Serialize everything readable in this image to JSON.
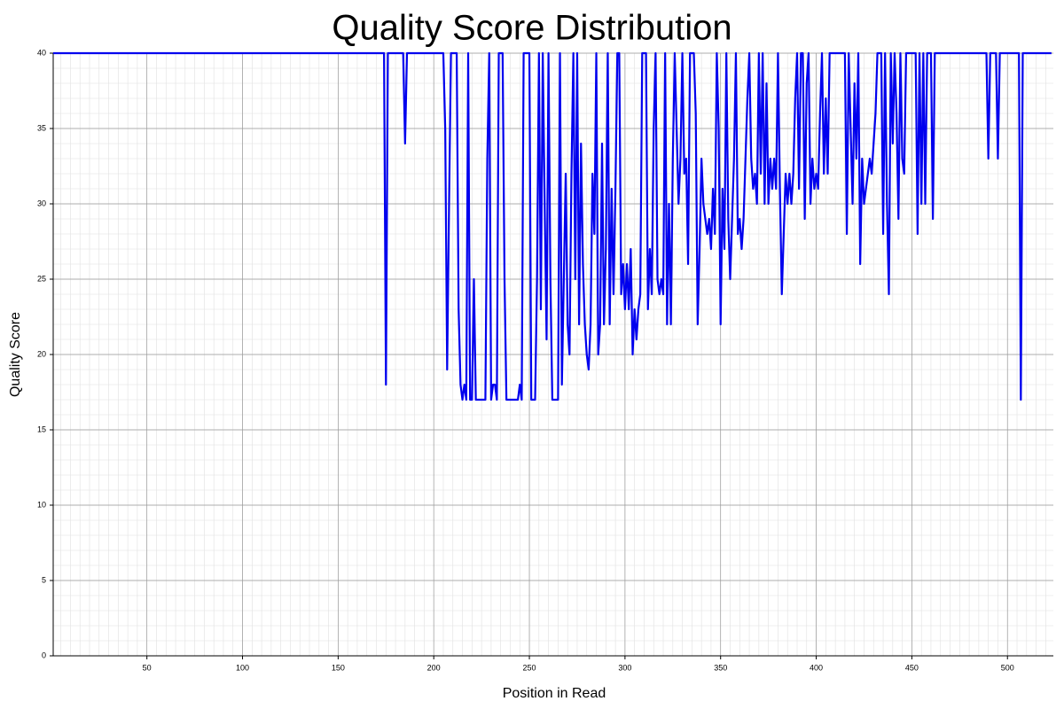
{
  "chart_data": {
    "type": "line",
    "title": "Quality Score Distribution",
    "x_label": "Position in Read",
    "y_label": "Quality Score",
    "color": "#0000ee",
    "grid": true,
    "xlim": [
      1,
      524
    ],
    "ylim": [
      0,
      40
    ],
    "xticks": [
      50,
      100,
      150,
      200,
      250,
      300,
      350,
      400,
      450,
      500
    ],
    "yticks": [
      0,
      5,
      10,
      15,
      20,
      25,
      30,
      35,
      40
    ],
    "x": [
      1,
      174,
      175,
      176,
      184,
      185,
      186,
      205,
      206,
      207,
      208,
      209,
      212,
      213,
      214,
      215,
      216,
      217,
      218,
      219,
      220,
      221,
      222,
      227,
      228,
      229,
      230,
      231,
      232,
      233,
      234,
      236,
      237,
      238,
      244,
      245,
      246,
      247,
      250,
      251,
      253,
      254,
      255,
      256,
      257,
      258,
      259,
      260,
      261,
      262,
      265,
      266,
      267,
      268,
      269,
      270,
      271,
      272,
      273,
      274,
      275,
      276,
      277,
      278,
      279,
      280,
      281,
      282,
      283,
      284,
      285,
      286,
      287,
      288,
      289,
      290,
      291,
      292,
      293,
      294,
      295,
      296,
      297,
      298,
      299,
      300,
      301,
      302,
      303,
      304,
      305,
      306,
      307,
      308,
      309,
      311,
      312,
      313,
      314,
      315,
      316,
      317,
      318,
      319,
      320,
      321,
      322,
      323,
      324,
      325,
      326,
      327,
      328,
      329,
      330,
      331,
      332,
      333,
      334,
      336,
      337,
      338,
      339,
      340,
      341,
      342,
      343,
      344,
      345,
      346,
      347,
      348,
      349,
      350,
      351,
      352,
      353,
      354,
      355,
      356,
      357,
      358,
      359,
      360,
      361,
      362,
      363,
      364,
      365,
      366,
      367,
      368,
      369,
      370,
      371,
      372,
      373,
      374,
      375,
      376,
      377,
      378,
      379,
      380,
      381,
      382,
      383,
      384,
      385,
      386,
      387,
      388,
      389,
      390,
      391,
      392,
      393,
      394,
      395,
      396,
      397,
      398,
      399,
      400,
      401,
      402,
      403,
      404,
      405,
      406,
      407,
      410,
      415,
      416,
      417,
      419,
      420,
      421,
      422,
      423,
      424,
      425,
      426,
      427,
      428,
      429,
      430,
      431,
      432,
      434,
      435,
      436,
      437,
      438,
      439,
      440,
      441,
      442,
      443,
      444,
      445,
      446,
      447,
      452,
      453,
      454,
      455,
      456,
      457,
      458,
      460,
      461,
      462,
      489,
      490,
      491,
      494,
      495,
      496,
      506,
      507,
      508,
      523
    ],
    "values": [
      40,
      40,
      18,
      40,
      40,
      34,
      40,
      40,
      35,
      19,
      30,
      40,
      40,
      23,
      18,
      17,
      18,
      17,
      40,
      17,
      17,
      25,
      17,
      17,
      33,
      40,
      17,
      18,
      18,
      17,
      40,
      40,
      25,
      17,
      17,
      18,
      17,
      40,
      40,
      17,
      17,
      25,
      40,
      23,
      40,
      30,
      21,
      40,
      25,
      17,
      17,
      40,
      18,
      25,
      32,
      22,
      20,
      32,
      40,
      25,
      40,
      22,
      34,
      26,
      22,
      20,
      19,
      22,
      32,
      28,
      40,
      20,
      22,
      34,
      22,
      27,
      40,
      22,
      31,
      24,
      31,
      40,
      40,
      24,
      26,
      23,
      26,
      23,
      27,
      20,
      23,
      21,
      23,
      24,
      40,
      40,
      23,
      27,
      24,
      35,
      40,
      25,
      24,
      25,
      24,
      40,
      22,
      30,
      22,
      33,
      40,
      35,
      30,
      33,
      40,
      32,
      33,
      26,
      40,
      40,
      36,
      22,
      27,
      33,
      30,
      29,
      28,
      29,
      27,
      31,
      28,
      40,
      35,
      22,
      31,
      27,
      40,
      29,
      25,
      29,
      33,
      40,
      28,
      29,
      27,
      29,
      33,
      37,
      40,
      33,
      31,
      32,
      30,
      40,
      32,
      40,
      30,
      38,
      30,
      33,
      31,
      33,
      31,
      40,
      31,
      24,
      28,
      32,
      30,
      32,
      30,
      32,
      37,
      40,
      31,
      40,
      40,
      29,
      38,
      40,
      30,
      33,
      31,
      32,
      31,
      36,
      40,
      32,
      37,
      32,
      40,
      40,
      40,
      28,
      40,
      30,
      38,
      33,
      40,
      26,
      33,
      30,
      31,
      32,
      33,
      32,
      34,
      36,
      40,
      40,
      28,
      40,
      30,
      24,
      40,
      34,
      40,
      36,
      29,
      40,
      33,
      32,
      40,
      40,
      28,
      40,
      30,
      40,
      30,
      40,
      40,
      29,
      40,
      40,
      33,
      40,
      40,
      33,
      40,
      40,
      17,
      40,
      40
    ]
  }
}
